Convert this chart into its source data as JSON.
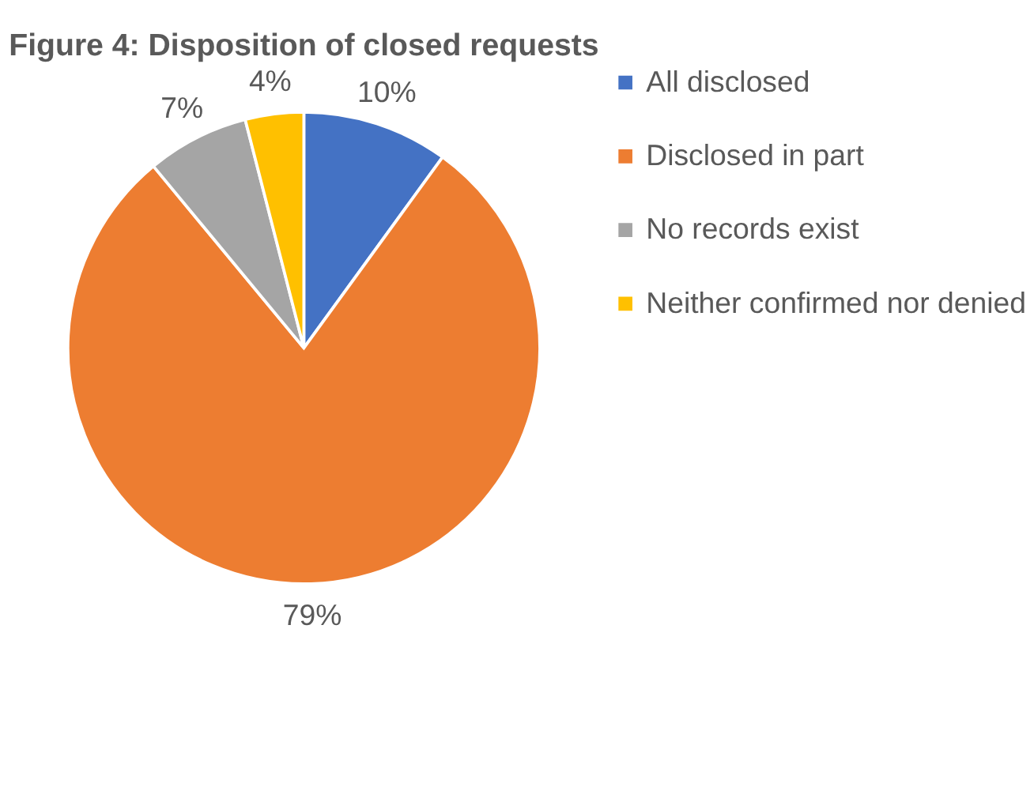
{
  "chart_data": {
    "type": "pie",
    "title": "Figure 4: Disposition of closed requests",
    "categories": [
      "All disclosed",
      "Disclosed in part",
      "No records exist",
      "Neither confirmed nor denied"
    ],
    "values": [
      10,
      79,
      7,
      4
    ],
    "colors": [
      "#4472c4",
      "#ed7d31",
      "#a5a5a5",
      "#ffc000"
    ],
    "value_labels": [
      "10%",
      "79%",
      "7%",
      "4%"
    ],
    "legend": "right"
  }
}
